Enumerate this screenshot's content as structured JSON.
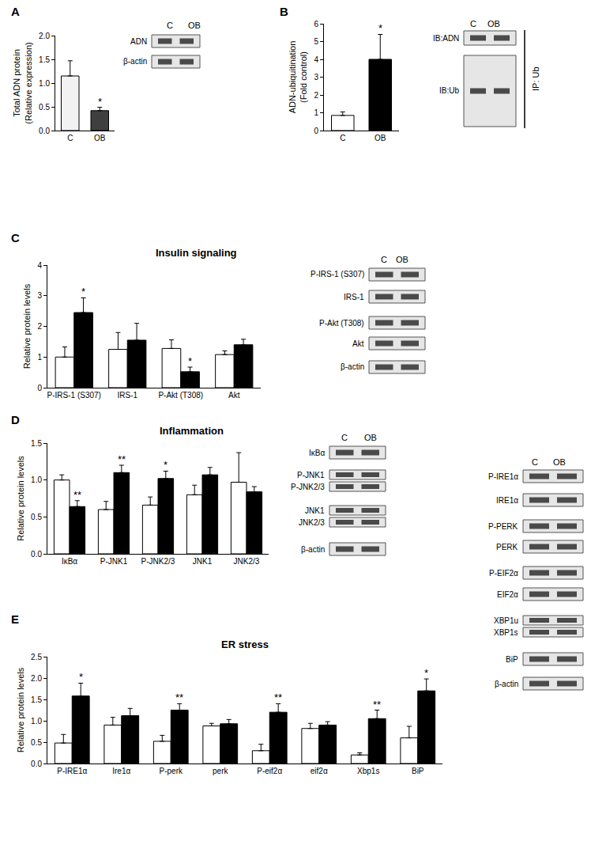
{
  "chart_data": [
    {
      "panel": "A",
      "type": "bar",
      "y_label": "Total ADN protein\n(Relative expression)",
      "categories": [
        "C",
        "OB"
      ],
      "values": [
        1.15,
        0.42
      ],
      "errors": [
        0.32,
        0.07
      ],
      "colors": [
        "#f2f2f2",
        "#3f3f3f"
      ],
      "significance": [
        null,
        "*"
      ],
      "ylim": [
        0,
        2.0
      ],
      "yticks": [
        {
          "value": 0,
          "label": "0.0"
        },
        {
          "value": 0.5,
          "label": "0.5"
        },
        {
          "value": 1.0,
          "label": "1.0"
        },
        {
          "value": 1.5,
          "label": "1.5"
        },
        {
          "value": 2.0,
          "label": "2.0"
        }
      ],
      "grid": false,
      "blot": {
        "lanes": [
          "C",
          "OB"
        ],
        "rows": [
          "ADN",
          "β-actin"
        ]
      }
    },
    {
      "panel": "B",
      "type": "bar",
      "y_label": "ADN-ubiquitination\n(Fold control)",
      "categories": [
        "C",
        "OB"
      ],
      "values": [
        0.85,
        4.0
      ],
      "errors": [
        0.2,
        1.4
      ],
      "colors": [
        "#ffffff",
        "#000000"
      ],
      "significance": [
        null,
        "*"
      ],
      "ylim": [
        0,
        6
      ],
      "yticks": [
        0,
        1,
        2,
        3,
        4,
        5,
        6
      ],
      "grid": false,
      "blot": {
        "lanes": [
          "C",
          "OB"
        ],
        "rows": [
          "IB:ADN",
          "IB:Ub"
        ],
        "side_label": "IP: Ub"
      }
    },
    {
      "panel": "C",
      "type": "bar",
      "title": "Insulin signaling",
      "y_label": "Relative protein levels",
      "categories": [
        "P-IRS-1 (S307)",
        "IRS-1",
        "P-Akt (T308)",
        "Akt"
      ],
      "series": [
        {
          "color": "#ffffff",
          "values": [
            1.0,
            1.25,
            1.28,
            1.08
          ],
          "errors": [
            0.33,
            0.55,
            0.28,
            0.12
          ]
        },
        {
          "color": "#000000",
          "values": [
            2.45,
            1.55,
            0.52,
            1.4
          ],
          "errors": [
            0.48,
            0.55,
            0.15,
            0.18
          ],
          "significance": [
            "*",
            null,
            "*",
            null
          ]
        }
      ],
      "ylim": [
        0,
        4
      ],
      "yticks": [
        0,
        1,
        2,
        3,
        4
      ],
      "grid": false,
      "blot": {
        "lanes": [
          "C",
          "OB"
        ],
        "rows": [
          "P-IRS-1 (S307)",
          "IRS-1",
          "P-Akt (T308)",
          "Akt",
          "β-actin"
        ]
      }
    },
    {
      "panel": "D",
      "type": "bar",
      "title": "Inflammation",
      "y_label": "Relative protein levels",
      "categories": [
        "IκBα",
        "P-JNK1",
        "P-JNK2/3",
        "JNK1",
        "JNK2/3"
      ],
      "series": [
        {
          "color": "#ffffff",
          "values": [
            1.0,
            0.6,
            0.66,
            0.8,
            0.97
          ],
          "errors": [
            0.07,
            0.11,
            0.11,
            0.13,
            0.4
          ]
        },
        {
          "color": "#000000",
          "values": [
            0.64,
            1.1,
            1.02,
            1.07,
            0.84
          ],
          "errors": [
            0.08,
            0.1,
            0.1,
            0.1,
            0.07
          ],
          "significance": [
            "**",
            "**",
            "*",
            null,
            null
          ]
        }
      ],
      "ylim": [
        0,
        1.5
      ],
      "yticks": [
        {
          "value": 0,
          "label": "0.0"
        },
        {
          "value": 0.5,
          "label": "0.5"
        },
        {
          "value": 1.0,
          "label": "1.0"
        },
        {
          "value": 1.5,
          "label": "1.5"
        }
      ],
      "grid": false,
      "blot": {
        "lanes": [
          "C",
          "OB"
        ],
        "rows": [
          "IκBα",
          "P-JNK1",
          "P-JNK2/3",
          "JNK1",
          "JNK2/3",
          "β-actin"
        ]
      }
    },
    {
      "panel": "E",
      "type": "bar",
      "title": "ER stress",
      "y_label": "Relative protein levels",
      "categories": [
        "P-IRE1α",
        "Ire1α",
        "P-perk",
        "perk",
        "P-eif2α",
        "eif2α",
        "Xbp1s",
        "BiP"
      ],
      "series": [
        {
          "color": "#ffffff",
          "values": [
            0.48,
            0.9,
            0.52,
            0.88,
            0.3,
            0.82,
            0.2,
            0.6
          ],
          "errors": [
            0.2,
            0.18,
            0.14,
            0.06,
            0.15,
            0.12,
            0.05,
            0.27
          ]
        },
        {
          "color": "#000000",
          "values": [
            1.58,
            1.12,
            1.25,
            0.93,
            1.2,
            0.9,
            1.05,
            1.7
          ],
          "errors": [
            0.3,
            0.17,
            0.15,
            0.1,
            0.2,
            0.08,
            0.2,
            0.28
          ],
          "significance": [
            "*",
            null,
            "**",
            null,
            "**",
            null,
            "**",
            "*"
          ]
        }
      ],
      "ylim": [
        0,
        2.5
      ],
      "yticks": [
        {
          "value": 0,
          "label": "0.0"
        },
        {
          "value": 0.5,
          "label": "0.5"
        },
        {
          "value": 1.0,
          "label": "1.0"
        },
        {
          "value": 1.5,
          "label": "1.5"
        },
        {
          "value": 2.0,
          "label": "2.0"
        },
        {
          "value": 2.5,
          "label": "2.5"
        }
      ],
      "grid": false,
      "blot": {
        "lanes": [
          "C",
          "OB"
        ],
        "rows": [
          "P-IRE1α",
          "IRE1α",
          "P-PERK",
          "PERK",
          "P-EIF2α",
          "EIF2α",
          "XBP1u",
          "XBP1s",
          "BiP",
          "β-actin"
        ]
      }
    }
  ]
}
